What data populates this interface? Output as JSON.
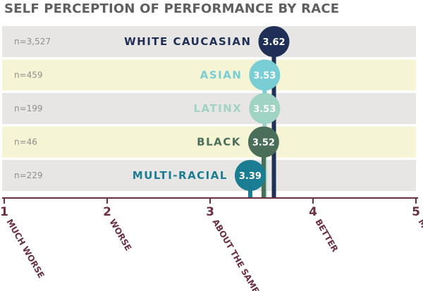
{
  "chart_data": {
    "type": "dot",
    "title": "SELF PERCEPTION OF PERFORMANCE BY RACE",
    "xlim": [
      1,
      5
    ],
    "x_ticks": [
      {
        "value": 1,
        "number": "1",
        "label": "MUCH WORSE"
      },
      {
        "value": 2,
        "number": "2",
        "label": "WORSE"
      },
      {
        "value": 3,
        "number": "3",
        "label": "ABOUT THE SAME"
      },
      {
        "value": 4,
        "number": "4",
        "label": "BETTER"
      },
      {
        "value": 5,
        "number": "5",
        "label": "MUCH BETTER"
      }
    ],
    "series": [
      {
        "category": "WHITE CAUCASIAN",
        "n": "n=3,527",
        "value": 3.62,
        "value_label": "3.62",
        "color": "#1f2f55",
        "row_color": "#e8e6e5"
      },
      {
        "category": "ASIAN",
        "n": "n=459",
        "value": 3.53,
        "value_label": "3.53",
        "color": "#79cdd5",
        "row_color": "#f5f5d5"
      },
      {
        "category": "LATINX",
        "n": "n=199",
        "value": 3.53,
        "value_label": "3.53",
        "color": "#9fd4c4",
        "row_color": "#e8e6e5"
      },
      {
        "category": "BLACK",
        "n": "n=46",
        "value": 3.52,
        "value_label": "3.52",
        "color": "#4a6e5a",
        "row_color": "#f5f5d5"
      },
      {
        "category": "MULTI-RACIAL",
        "n": "n=229",
        "value": 3.39,
        "value_label": "3.39",
        "color": "#1b7d92",
        "row_color": "#e8e6e5"
      }
    ],
    "axis_color": "#6b2f45",
    "grid": false
  }
}
